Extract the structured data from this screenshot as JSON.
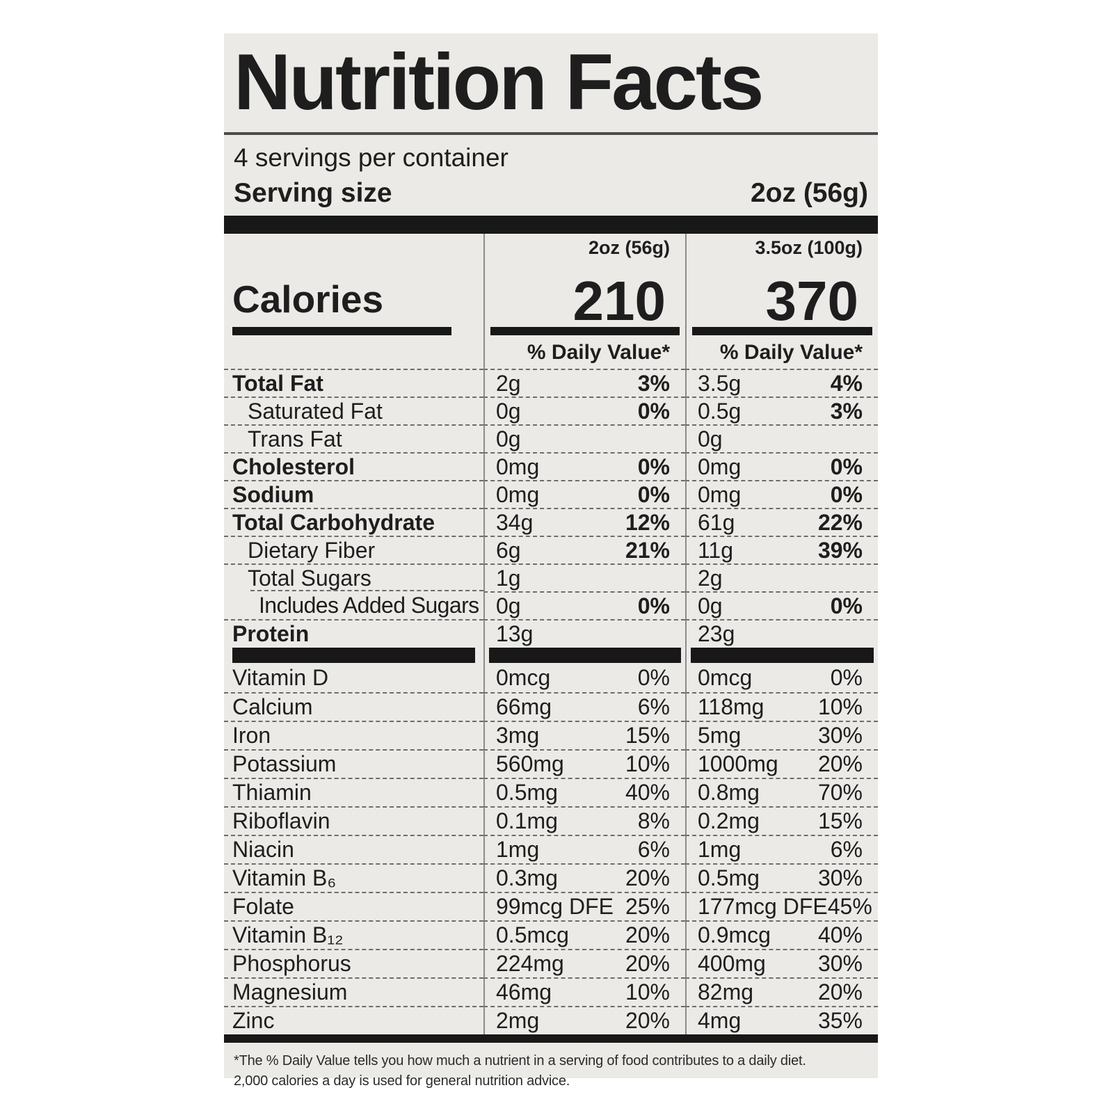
{
  "label": {
    "title": "Nutrition Facts",
    "servings_per_container": "4 servings per container",
    "serving_size_label": "Serving size",
    "serving_size_value": "2oz (56g)",
    "calories_label": "Calories",
    "columns": [
      {
        "header": "2oz (56g)",
        "calories": "210",
        "daily_value_header": "% Daily Value*"
      },
      {
        "header": "3.5oz (100g)",
        "calories": "370",
        "daily_value_header": "% Daily Value*"
      }
    ],
    "nutrients": [
      {
        "name": "Total Fat",
        "bold": true,
        "indent": 0,
        "amount1": "2g",
        "dv1": "3%",
        "amount2": "3.5g",
        "dv2": "4%"
      },
      {
        "name": "Saturated Fat",
        "bold": false,
        "indent": 1,
        "amount1": "0g",
        "dv1": "0%",
        "amount2": "0.5g",
        "dv2": "3%"
      },
      {
        "name": "Trans Fat",
        "bold": false,
        "indent": 1,
        "amount1": "0g",
        "dv1": "",
        "amount2": "0g",
        "dv2": ""
      },
      {
        "name": "Cholesterol",
        "bold": true,
        "indent": 0,
        "amount1": "0mg",
        "dv1": "0%",
        "amount2": "0mg",
        "dv2": "0%"
      },
      {
        "name": "Sodium",
        "bold": true,
        "indent": 0,
        "amount1": "0mg",
        "dv1": "0%",
        "amount2": "0mg",
        "dv2": "0%"
      },
      {
        "name": "Total Carbohydrate",
        "bold": true,
        "indent": 0,
        "amount1": "34g",
        "dv1": "12%",
        "amount2": "61g",
        "dv2": "22%"
      },
      {
        "name": "Dietary Fiber",
        "bold": false,
        "indent": 1,
        "amount1": "6g",
        "dv1": "21%",
        "amount2": "11g",
        "dv2": "39%"
      },
      {
        "name": "Total Sugars",
        "bold": false,
        "indent": 1,
        "amount1": "1g",
        "dv1": "",
        "amount2": "2g",
        "dv2": ""
      },
      {
        "name": "Includes Added Sugars",
        "bold": false,
        "indent": 2,
        "indent_sep": true,
        "amount1": "0g",
        "dv1": "0%",
        "amount2": "0g",
        "dv2": "0%"
      },
      {
        "name": "Protein",
        "bold": true,
        "indent": 0,
        "amount1": "13g",
        "dv1": "",
        "amount2": "23g",
        "dv2": ""
      }
    ],
    "vitamins": [
      {
        "name": "Vitamin D",
        "amount1": "0mcg",
        "dv1": "0%",
        "amount2": "0mcg",
        "dv2": "0%"
      },
      {
        "name": "Calcium",
        "amount1": "66mg",
        "dv1": "6%",
        "amount2": "118mg",
        "dv2": "10%"
      },
      {
        "name": "Iron",
        "amount1": "3mg",
        "dv1": "15%",
        "amount2": "5mg",
        "dv2": "30%"
      },
      {
        "name": "Potassium",
        "amount1": "560mg",
        "dv1": "10%",
        "amount2": "1000mg",
        "dv2": "20%"
      },
      {
        "name": "Thiamin",
        "amount1": "0.5mg",
        "dv1": "40%",
        "amount2": "0.8mg",
        "dv2": "70%"
      },
      {
        "name": "Riboflavin",
        "amount1": "0.1mg",
        "dv1": "8%",
        "amount2": "0.2mg",
        "dv2": "15%"
      },
      {
        "name": "Niacin",
        "amount1": "1mg",
        "dv1": "6%",
        "amount2": "1mg",
        "dv2": "6%"
      },
      {
        "name": "Vitamin B₆",
        "amount1": "0.3mg",
        "dv1": "20%",
        "amount2": "0.5mg",
        "dv2": "30%"
      },
      {
        "name": "Folate",
        "amount1": "99mcg DFE",
        "dv1": "25%",
        "amount2": "177mcg DFE",
        "dv2": "45%"
      },
      {
        "name": "Vitamin B₁₂",
        "amount1": "0.5mcg",
        "dv1": "20%",
        "amount2": "0.9mcg",
        "dv2": "40%"
      },
      {
        "name": "Phosphorus",
        "amount1": "224mg",
        "dv1": "20%",
        "amount2": "400mg",
        "dv2": "30%"
      },
      {
        "name": "Magnesium",
        "amount1": "46mg",
        "dv1": "10%",
        "amount2": "82mg",
        "dv2": "20%"
      },
      {
        "name": "Zinc",
        "amount1": "2mg",
        "dv1": "20%",
        "amount2": "4mg",
        "dv2": "35%"
      }
    ],
    "footnote_line1": "*The % Daily Value tells you how much a nutrient in a serving of food contributes to a daily diet.",
    "footnote_line2": "2,000 calories a day is used for general nutrition advice."
  }
}
